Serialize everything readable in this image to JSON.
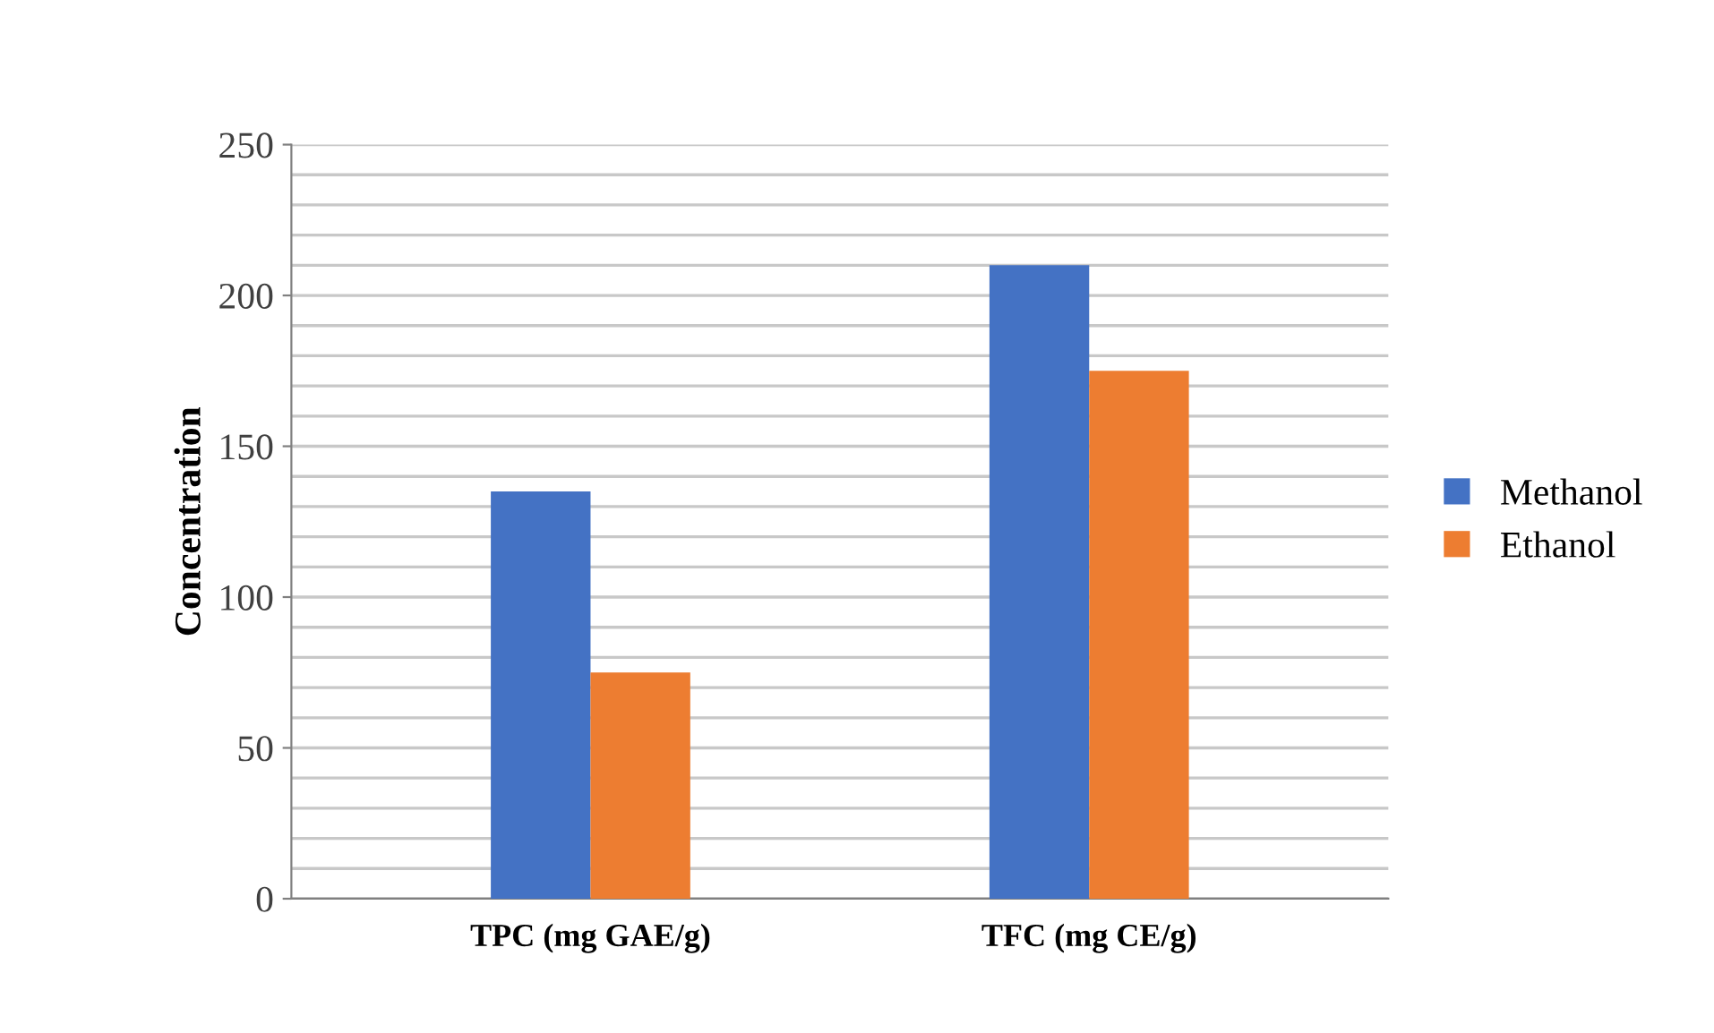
{
  "chart_data": {
    "type": "bar",
    "ylabel": "Concentration",
    "categories": [
      "TPC (mg GAE/g)",
      "TFC (mg CE/g)"
    ],
    "series": [
      {
        "name": "Methanol",
        "color": "#4472c4",
        "values": [
          135,
          210
        ]
      },
      {
        "name": "Ethanol",
        "color": "#ed7d31",
        "values": [
          75,
          175
        ]
      }
    ],
    "ylim": [
      0,
      250
    ],
    "yticks": [
      0,
      {
        "value": 10,
        "label": null
      },
      {
        "value": 20,
        "label": null
      },
      {
        "value": 30,
        "label": null
      },
      {
        "value": 40,
        "label": null
      },
      50,
      {
        "value": 60,
        "label": null
      },
      {
        "value": 70,
        "label": null
      },
      {
        "value": 80,
        "label": null
      },
      {
        "value": 90,
        "label": null
      },
      100,
      {
        "value": 110,
        "label": null
      },
      {
        "value": 120,
        "label": null
      },
      {
        "value": 130,
        "label": null
      },
      {
        "value": 140,
        "label": null
      },
      150,
      {
        "value": 160,
        "label": null
      },
      {
        "value": 170,
        "label": null
      },
      {
        "value": 180,
        "label": null
      },
      {
        "value": 190,
        "label": null
      },
      200,
      {
        "value": 210,
        "label": null
      },
      {
        "value": 220,
        "label": null
      },
      {
        "value": 230,
        "label": null
      },
      {
        "value": 240,
        "label": null
      },
      250
    ],
    "grid": "y",
    "legend": "right"
  }
}
